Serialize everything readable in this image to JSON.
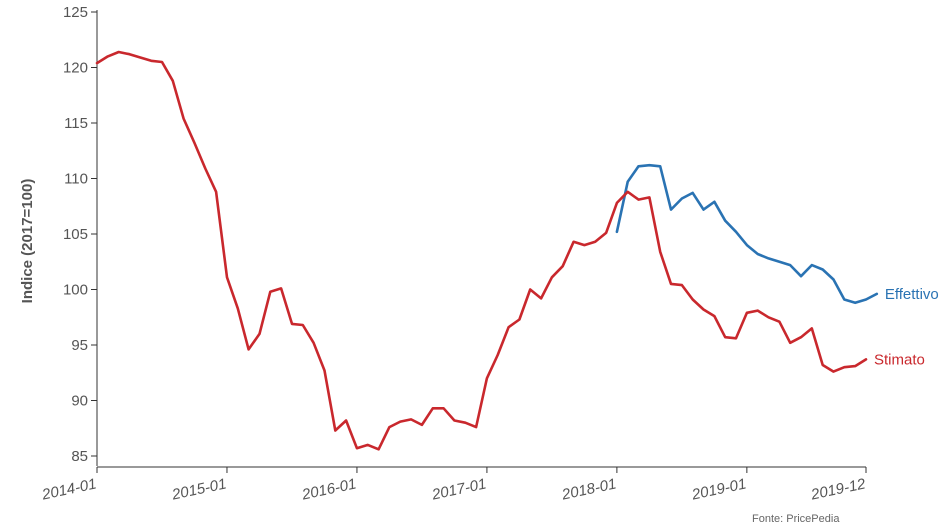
{
  "chart_data": {
    "type": "line",
    "title": "",
    "xlabel": "",
    "ylabel": "Indice (2017=100)",
    "ylim": [
      85,
      125
    ],
    "yticks": [
      85,
      90,
      95,
      100,
      105,
      110,
      115,
      120,
      125
    ],
    "xlim": [
      "2014-01",
      "2019-12"
    ],
    "xtick_labels": [
      "2014-01",
      "2015-01",
      "2016-01",
      "2017-01",
      "2018-01",
      "2019-01",
      "2019-12"
    ],
    "grid": false,
    "source": "Fonte: PricePedia",
    "series": [
      {
        "name": "Effettivo",
        "color": "#2a73b3",
        "points": [
          [
            "2018-01",
            105.2
          ],
          [
            "2018-02",
            109.7
          ],
          [
            "2018-03",
            111.1
          ],
          [
            "2018-04",
            111.2
          ],
          [
            "2018-05",
            111.1
          ],
          [
            "2018-06",
            107.2
          ],
          [
            "2018-07",
            108.2
          ],
          [
            "2018-08",
            108.7
          ],
          [
            "2018-09",
            107.2
          ],
          [
            "2018-10",
            107.9
          ],
          [
            "2018-11",
            106.2
          ],
          [
            "2018-12",
            105.2
          ],
          [
            "2019-01",
            104.0
          ],
          [
            "2019-02",
            103.2
          ],
          [
            "2019-03",
            102.8
          ],
          [
            "2019-04",
            102.5
          ],
          [
            "2019-05",
            102.2
          ],
          [
            "2019-06",
            101.2
          ],
          [
            "2019-07",
            102.2
          ],
          [
            "2019-08",
            101.8
          ],
          [
            "2019-09",
            100.9
          ],
          [
            "2019-10",
            99.1
          ],
          [
            "2019-11",
            98.8
          ],
          [
            "2019-12",
            99.1
          ],
          [
            "2020-01",
            99.6
          ]
        ]
      },
      {
        "name": "Stimato",
        "color": "#c9282d",
        "points": [
          [
            "2014-01",
            120.4
          ],
          [
            "2014-02",
            121.0
          ],
          [
            "2014-03",
            121.4
          ],
          [
            "2014-04",
            121.2
          ],
          [
            "2014-05",
            120.9
          ],
          [
            "2014-06",
            120.6
          ],
          [
            "2014-07",
            120.5
          ],
          [
            "2014-08",
            118.8
          ],
          [
            "2014-09",
            115.4
          ],
          [
            "2014-10",
            113.2
          ],
          [
            "2014-11",
            110.9
          ],
          [
            "2014-12",
            108.8
          ],
          [
            "2015-01",
            101.1
          ],
          [
            "2015-02",
            98.3
          ],
          [
            "2015-03",
            94.6
          ],
          [
            "2015-04",
            96.0
          ],
          [
            "2015-05",
            99.8
          ],
          [
            "2015-06",
            100.1
          ],
          [
            "2015-07",
            96.9
          ],
          [
            "2015-08",
            96.8
          ],
          [
            "2015-09",
            95.2
          ],
          [
            "2015-10",
            92.7
          ],
          [
            "2015-11",
            87.3
          ],
          [
            "2015-12",
            88.2
          ],
          [
            "2016-01",
            85.7
          ],
          [
            "2016-02",
            86.0
          ],
          [
            "2016-03",
            85.6
          ],
          [
            "2016-04",
            87.6
          ],
          [
            "2016-05",
            88.1
          ],
          [
            "2016-06",
            88.3
          ],
          [
            "2016-07",
            87.8
          ],
          [
            "2016-08",
            89.3
          ],
          [
            "2016-09",
            89.3
          ],
          [
            "2016-10",
            88.2
          ],
          [
            "2016-11",
            88.0
          ],
          [
            "2016-12",
            87.6
          ],
          [
            "2017-01",
            92.0
          ],
          [
            "2017-02",
            94.1
          ],
          [
            "2017-03",
            96.6
          ],
          [
            "2017-04",
            97.3
          ],
          [
            "2017-05",
            100.0
          ],
          [
            "2017-06",
            99.2
          ],
          [
            "2017-07",
            101.1
          ],
          [
            "2017-08",
            102.1
          ],
          [
            "2017-09",
            104.3
          ],
          [
            "2017-10",
            104.0
          ],
          [
            "2017-11",
            104.3
          ],
          [
            "2017-12",
            105.1
          ],
          [
            "2018-01",
            107.8
          ],
          [
            "2018-02",
            108.8
          ],
          [
            "2018-03",
            108.1
          ],
          [
            "2018-04",
            108.3
          ],
          [
            "2018-05",
            103.4
          ],
          [
            "2018-06",
            100.5
          ],
          [
            "2018-07",
            100.4
          ],
          [
            "2018-08",
            99.1
          ],
          [
            "2018-09",
            98.2
          ],
          [
            "2018-10",
            97.6
          ],
          [
            "2018-11",
            95.7
          ],
          [
            "2018-12",
            95.6
          ],
          [
            "2019-01",
            97.9
          ],
          [
            "2019-02",
            98.1
          ],
          [
            "2019-03",
            97.5
          ],
          [
            "2019-04",
            97.1
          ],
          [
            "2019-05",
            95.2
          ],
          [
            "2019-06",
            95.7
          ],
          [
            "2019-07",
            96.5
          ],
          [
            "2019-08",
            93.2
          ],
          [
            "2019-09",
            92.6
          ],
          [
            "2019-10",
            93.0
          ],
          [
            "2019-11",
            93.1
          ],
          [
            "2019-12",
            93.7
          ]
        ]
      }
    ]
  }
}
